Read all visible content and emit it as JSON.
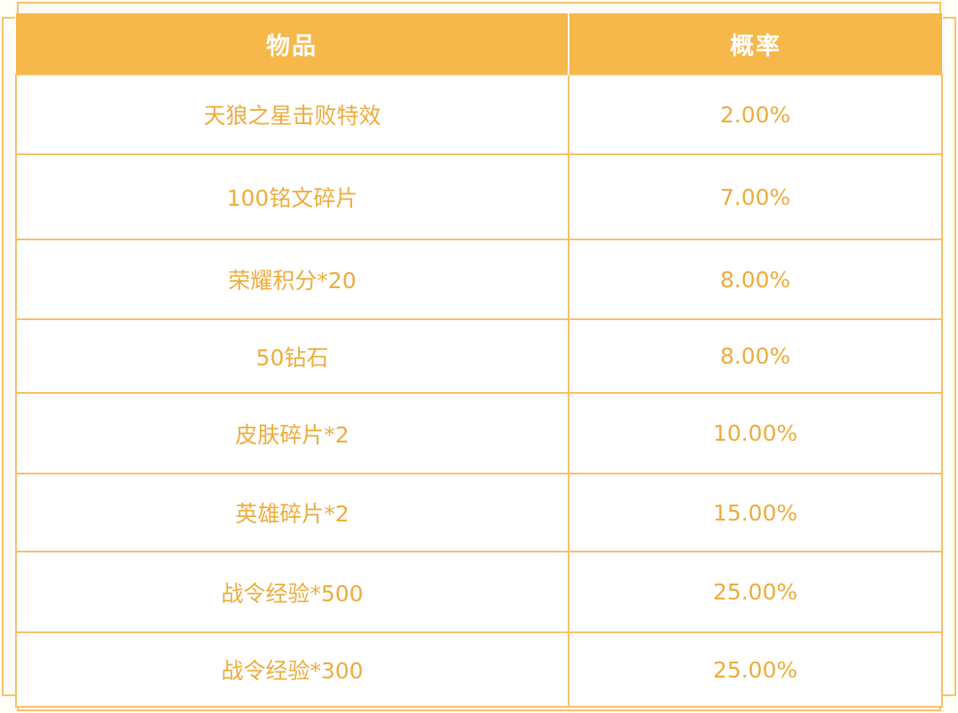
{
  "colors": {
    "header_bg": "#f6b84a",
    "header_text": "#ffffff",
    "cell_text": "#eeac3c",
    "border": "#f4c16a"
  },
  "table": {
    "headers": {
      "item": "物品",
      "probability": "概率"
    },
    "rows": [
      {
        "item": "天狼之星击败特效",
        "probability": "2.00%"
      },
      {
        "item": "100铭文碎片",
        "probability": "7.00%"
      },
      {
        "item": "荣耀积分*20",
        "probability": "8.00%"
      },
      {
        "item": "50钻石",
        "probability": "8.00%"
      },
      {
        "item": "皮肤碎片*2",
        "probability": "10.00%"
      },
      {
        "item": "英雄碎片*2",
        "probability": "15.00%"
      },
      {
        "item": "战令经验*500",
        "probability": "25.00%"
      },
      {
        "item": "战令经验*300",
        "probability": "25.00%"
      }
    ]
  }
}
